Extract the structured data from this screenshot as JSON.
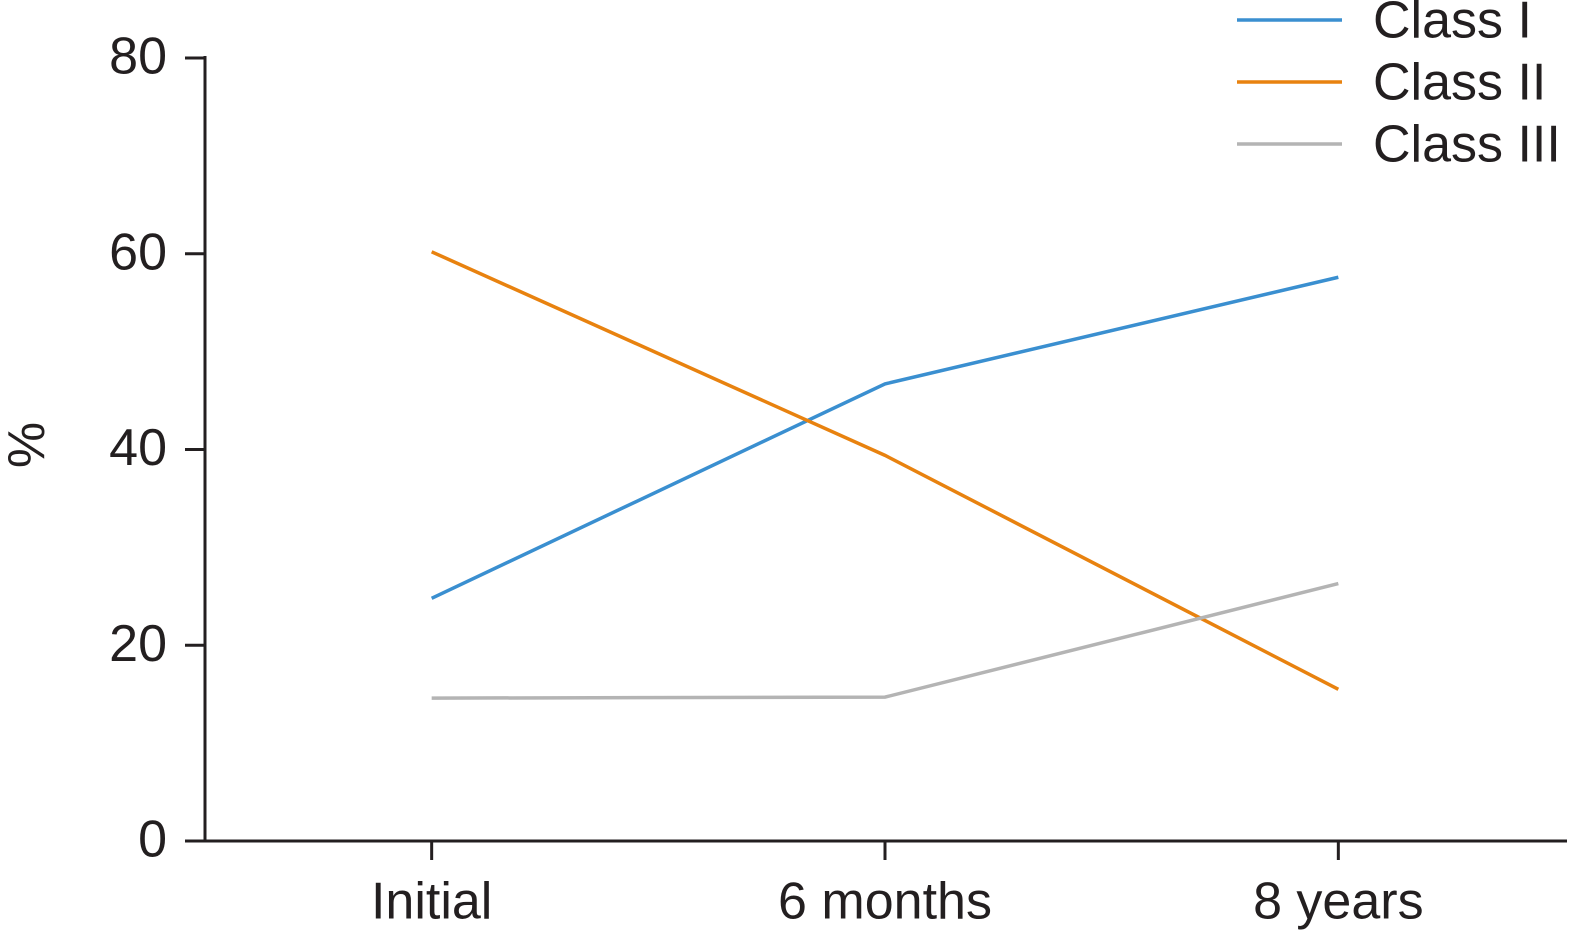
{
  "chart_data": {
    "type": "line",
    "y_label": "%",
    "categories": [
      "Initial",
      "6 months",
      "8 years"
    ],
    "series": [
      {
        "name": "Class I",
        "color": "#3a8fd0",
        "values": [
          24.8,
          46.7,
          57.6
        ]
      },
      {
        "name": "Class II",
        "color": "#e8820f",
        "values": [
          60.2,
          39.4,
          15.5
        ]
      },
      {
        "name": "Class III",
        "color": "#b4b4b4",
        "values": [
          14.6,
          14.7,
          26.3
        ]
      }
    ],
    "ylim": [
      0,
      80
    ],
    "yticks": [
      0,
      20,
      40,
      60,
      80
    ],
    "grid": false,
    "legend": "upper right"
  }
}
